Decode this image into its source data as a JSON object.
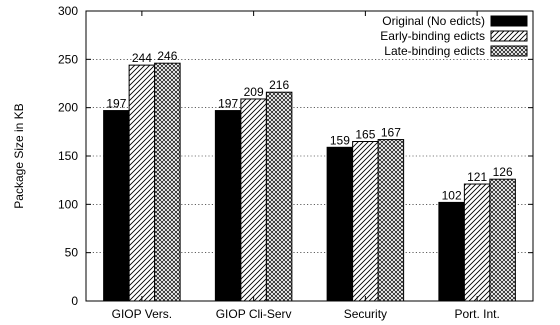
{
  "chart_data": {
    "type": "bar",
    "title": "",
    "xlabel": "",
    "ylabel": "Package Size in KB",
    "ylim": [
      0,
      300
    ],
    "yticks": [
      0,
      50,
      100,
      150,
      200,
      250,
      300
    ],
    "grid": "horizontal dotted",
    "legend_position": "top-right",
    "categories": [
      "GIOP Vers.",
      "GIOP Cli-Serv",
      "Security",
      "Port. Int."
    ],
    "series": [
      {
        "name": "Original (No edicts)",
        "fill": "solid",
        "color": "#000000",
        "values": [
          197,
          197,
          159,
          102
        ]
      },
      {
        "name": "Early-binding edicts",
        "fill": "diagonal-hatch",
        "color": "#000000",
        "values": [
          244,
          209,
          165,
          121
        ]
      },
      {
        "name": "Late-binding edicts",
        "fill": "crosshatch",
        "color": "#000000",
        "values": [
          246,
          216,
          167,
          126
        ]
      }
    ]
  }
}
